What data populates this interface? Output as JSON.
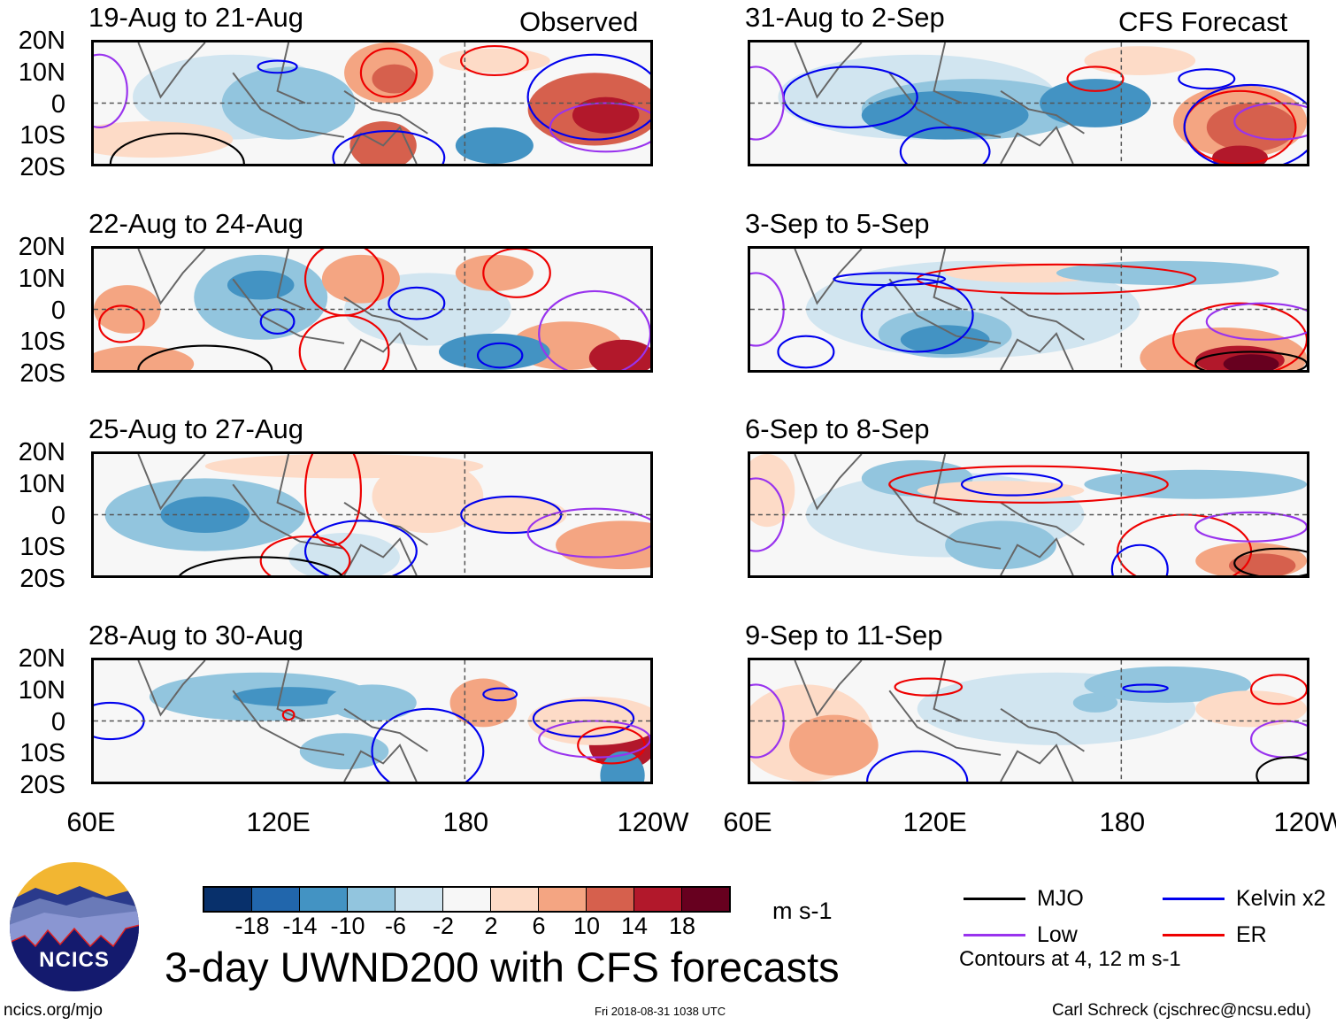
{
  "chart_data": {
    "type": "heatmap",
    "title": "3-day UWND200 with CFS forecasts",
    "variable": "200-hPa zonal wind anomaly (UWND200)",
    "units": "m s-1",
    "xlabel": "",
    "ylabel": "",
    "x_ticks": [
      "60E",
      "120E",
      "180",
      "120W"
    ],
    "y_ticks": [
      "20N",
      "10N",
      "0",
      "10S",
      "20S"
    ],
    "xlim": [
      "60E",
      "120W"
    ],
    "ylim": [
      "20S",
      "20N"
    ],
    "reference_lines": [
      "Equator (0)",
      "180"
    ],
    "colorbar": {
      "levels": [
        -18,
        -14,
        -10,
        -6,
        -2,
        2,
        6,
        10,
        14,
        18
      ],
      "colors": [
        "#08306b",
        "#2166ac",
        "#4393c3",
        "#92c5de",
        "#d1e5f0",
        "#f7f7f7",
        "#fddbc7",
        "#f4a582",
        "#d6604d",
        "#b2182b",
        "#67001f"
      ],
      "units_label": "m s-1"
    },
    "legend": {
      "placement": "bottom-right",
      "entries": [
        {
          "name": "MJO",
          "color": "#000000"
        },
        {
          "name": "Kelvin x2",
          "color": "#0000ee"
        },
        {
          "name": "Low",
          "color": "#9933ee"
        },
        {
          "name": "ER",
          "color": "#ee0000"
        }
      ],
      "note": "Contours at 4, 12 m s-1"
    },
    "columns": [
      {
        "label": "Observed",
        "panels": [
          {
            "title": "19-Aug to 21-Aug"
          },
          {
            "title": "22-Aug to 24-Aug"
          },
          {
            "title": "25-Aug to 27-Aug"
          },
          {
            "title": "28-Aug to 30-Aug"
          }
        ]
      },
      {
        "label": "CFS Forecast",
        "panels": [
          {
            "title": "31-Aug to 2-Sep"
          },
          {
            "title": "3-Sep to 5-Sep"
          },
          {
            "title": "6-Sep to 8-Sep"
          },
          {
            "title": "9-Sep to 11-Sep"
          }
        ]
      }
    ]
  },
  "footer": {
    "logo_text": "NCICS",
    "site": "ncics.org/mjo",
    "timestamp": "Fri 2018-08-31 1038 UTC",
    "credit": "Carl Schreck (cjschrec@ncsu.edu)"
  }
}
